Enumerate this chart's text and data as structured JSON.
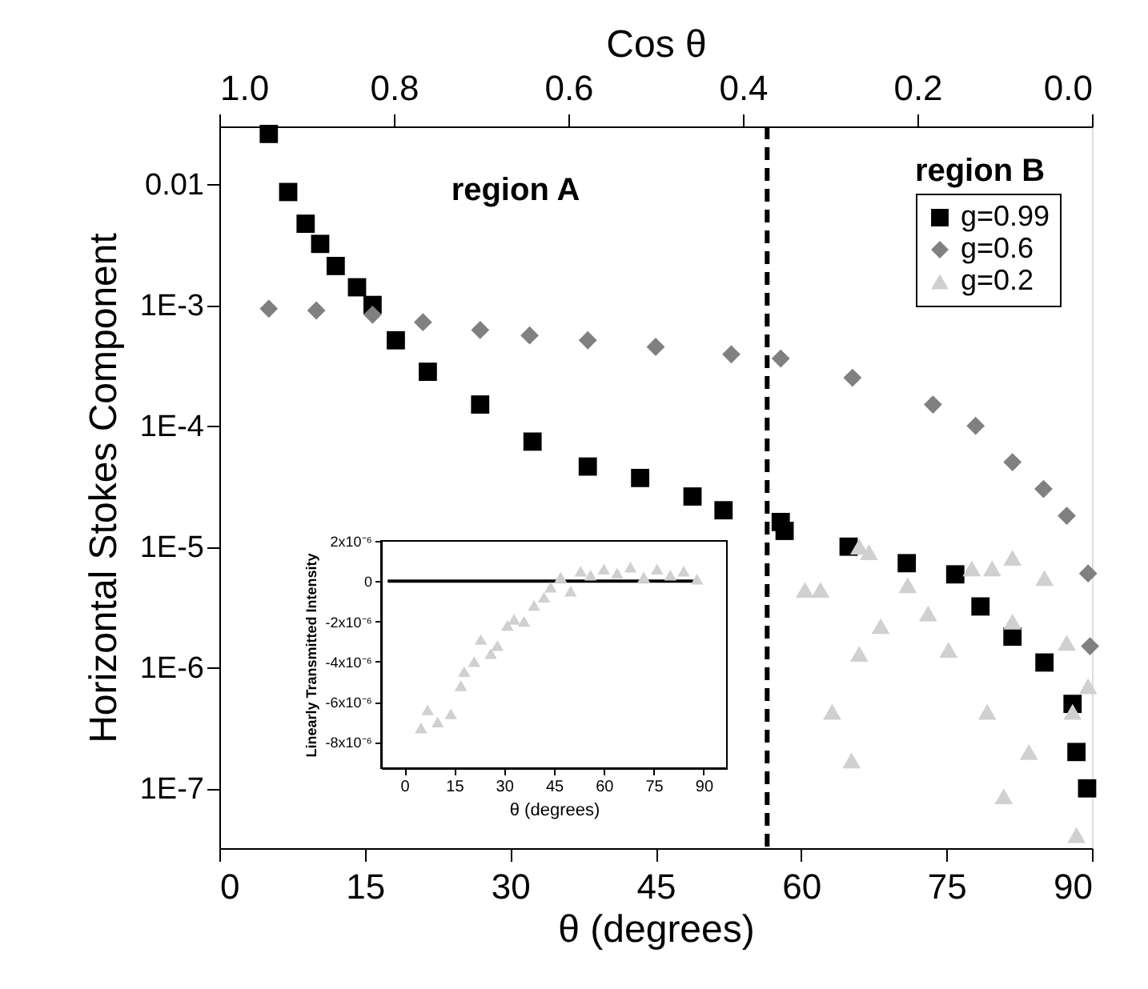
{
  "chart_data": [
    {
      "type": "scatter",
      "xlabel": "θ (degrees)",
      "ylabel": "Horizontal Stokes Component",
      "x2label": "Cos θ",
      "log": "y",
      "xlim": [
        0,
        90
      ],
      "xticks": [
        0,
        15,
        30,
        45,
        60,
        75,
        90
      ],
      "x2lim": [
        1.0,
        0.0
      ],
      "x2ticks": [
        {
          "value": 1.0,
          "label": "1.0"
        },
        0.8,
        0.6,
        0.4,
        0.2,
        {
          "value": 0.0,
          "label": "0.0"
        }
      ],
      "ylim": [
        3.2e-08,
        0.03
      ],
      "yticks": [
        0.01,
        {
          "value": 0.001,
          "label": "1E-3"
        },
        {
          "value": 0.0001,
          "label": "1E-4"
        },
        {
          "value": 1e-05,
          "label": "1E-5"
        },
        {
          "value": 1e-06,
          "label": "1E-6"
        },
        {
          "value": 1e-07,
          "label": "1E-7"
        }
      ],
      "legend": "top right",
      "annotations": [
        "region A",
        "region B"
      ],
      "ref_lines": [
        {
          "axis": "x",
          "value": 56.5,
          "color": "#000000",
          "line_style": "dashed"
        }
      ],
      "series": [
        {
          "name": "g=0.99",
          "color": "#000000",
          "marker": "square",
          "x": [
            5.1,
            7.1,
            8.9,
            10.4,
            12,
            14.2,
            15.8,
            18.2,
            21.5,
            26.9,
            32.3,
            38,
            43.4,
            48.8,
            52,
            57.9,
            58.3,
            64.9,
            70.9,
            75.9,
            78.5,
            81.8,
            85.1,
            88,
            88.4,
            89.5
          ],
          "values": [
            0.026,
            0.0086,
            0.0047,
            0.0032,
            0.0021,
            0.0014,
            0.001,
            0.00051,
            0.00028,
            0.00015,
            7.4e-05,
            4.6e-05,
            3.7e-05,
            2.6e-05,
            2e-05,
            1.6e-05,
            1.35e-05,
            1e-05,
            7.3e-06,
            5.9e-06,
            3.2e-06,
            1.8e-06,
            1.1e-06,
            5e-07,
            2e-07,
            1e-07
          ]
        },
        {
          "name": "g=0.6",
          "color": "#808080",
          "marker": "diamond",
          "x": [
            5.1,
            10,
            15.8,
            21,
            26.9,
            32,
            38,
            45,
            52.8,
            57.9,
            65.3,
            73.6,
            78,
            81.8,
            85,
            87.4,
            89.6,
            89.8
          ],
          "values": [
            0.00093,
            0.0009,
            0.00083,
            0.00072,
            0.00062,
            0.00056,
            0.00051,
            0.00045,
            0.00039,
            0.00036,
            0.00025,
            0.00015,
            0.0001,
            5e-05,
            3e-05,
            1.8e-05,
            6e-06,
            1.5e-06
          ]
        },
        {
          "name": "g=0.2",
          "color": "#d0d0d0",
          "marker": "triangle",
          "x": [
            66,
            67,
            60.4,
            62,
            63.2,
            65.2,
            66,
            68.2,
            71,
            73.1,
            75.2,
            77.6,
            79.2,
            79.7,
            81.8,
            81.8,
            83.5,
            80.9,
            85.1,
            87.4,
            88,
            88.4,
            89.6
          ],
          "values": [
            1e-05,
            9e-06,
            4.4e-06,
            4.4e-06,
            4.3e-07,
            1.7e-07,
            1.3e-06,
            2.2e-06,
            4.8e-06,
            2.8e-06,
            1.4e-06,
            6.6e-06,
            4.3e-07,
            6.6e-06,
            8.1e-06,
            2.4e-06,
            2e-07,
            8.6e-08,
            5.5e-06,
            1.6e-06,
            4.3e-07,
            4.1e-08,
            7e-07
          ]
        }
      ]
    },
    {
      "type": "scatter",
      "xlabel": "θ (degrees)",
      "ylabel": "Linearly Transmitted Intensity",
      "xlim": [
        -7,
        97
      ],
      "xticks": [
        0,
        15,
        30,
        45,
        60,
        75,
        90
      ],
      "ylim": [
        -9.3e-06,
        2e-06
      ],
      "yticks": [
        {
          "value": 2e-06,
          "label": "2x10⁻⁶"
        },
        0,
        {
          "value": -2e-06,
          "label": "-2x10⁻⁶"
        },
        {
          "value": -4e-06,
          "label": "-4x10⁻⁶"
        },
        {
          "value": -6e-06,
          "label": "-6x10⁻⁶"
        },
        {
          "value": -8e-06,
          "label": "-8x10⁻⁶"
        }
      ],
      "series": [
        {
          "type": "line",
          "color": "#000000",
          "marker": "none",
          "x": [
            -5,
            87
          ],
          "values": [
            0,
            0
          ]
        },
        {
          "color": "#d0d0d0",
          "marker": "triangle",
          "x": [
            5,
            7,
            10,
            14,
            17,
            18,
            21,
            23,
            26,
            28,
            31,
            33,
            36,
            39,
            42,
            44,
            47,
            50,
            53,
            56,
            60,
            64,
            68,
            72,
            76,
            80,
            84,
            88
          ],
          "values": [
            -7.3e-06,
            -6.4e-06,
            -7e-06,
            -6.6e-06,
            -5.2e-06,
            -4.5e-06,
            -4e-06,
            -2.9e-06,
            -3.6e-06,
            -3.2e-06,
            -2.2e-06,
            -1.9e-06,
            -2e-06,
            -1.2e-06,
            -8e-07,
            -3e-07,
            2e-07,
            -5e-07,
            5e-07,
            3e-07,
            6e-07,
            4e-07,
            7e-07,
            2e-07,
            6e-07,
            3e-07,
            5e-07,
            1e-07
          ]
        }
      ]
    }
  ]
}
